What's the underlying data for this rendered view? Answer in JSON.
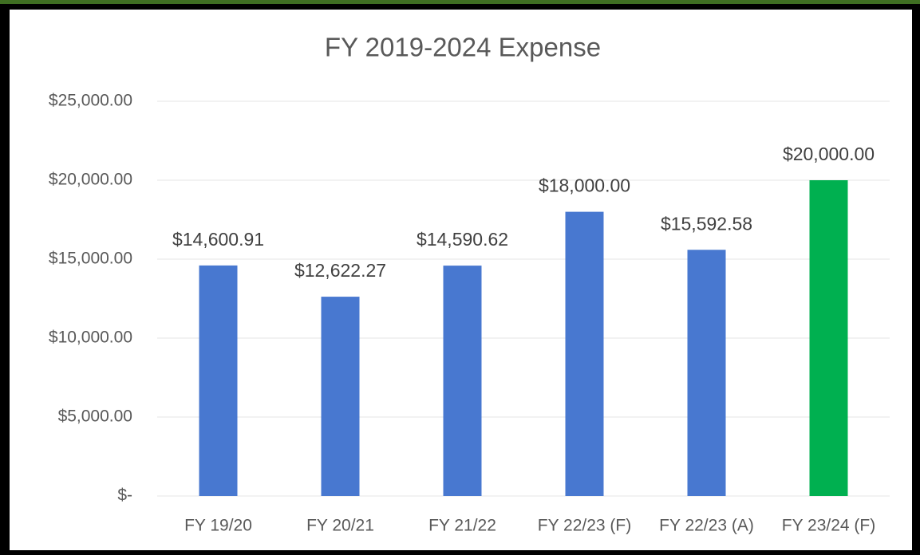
{
  "chart_data": {
    "type": "bar",
    "title": "FY 2019-2024 Expense",
    "categories": [
      "FY 19/20",
      "FY 20/21",
      "FY 21/22",
      "FY 22/23 (F)",
      "FY 22/23 (A)",
      "FY 23/24 (F)"
    ],
    "values": [
      14600.91,
      12622.27,
      14590.62,
      18000,
      15592.58,
      20000
    ],
    "value_labels": [
      "$14,600.91",
      "$12,622.27",
      "$14,590.62",
      "$18,000.00",
      "$15,592.58",
      "$20,000.00"
    ],
    "colors": [
      "#4878d0",
      "#4878d0",
      "#4878d0",
      "#4878d0",
      "#4878d0",
      "#00b050"
    ],
    "ylim": [
      0,
      25000
    ],
    "yticks": [
      {
        "value": 0,
        "label": "$-"
      },
      {
        "value": 5000,
        "label": "$5,000.00"
      },
      {
        "value": 10000,
        "label": "$10,000.00"
      },
      {
        "value": 15000,
        "label": "$15,000.00"
      },
      {
        "value": 20000,
        "label": "$20,000.00"
      },
      {
        "value": 25000,
        "label": "$25,000.00"
      }
    ],
    "grid": true
  }
}
